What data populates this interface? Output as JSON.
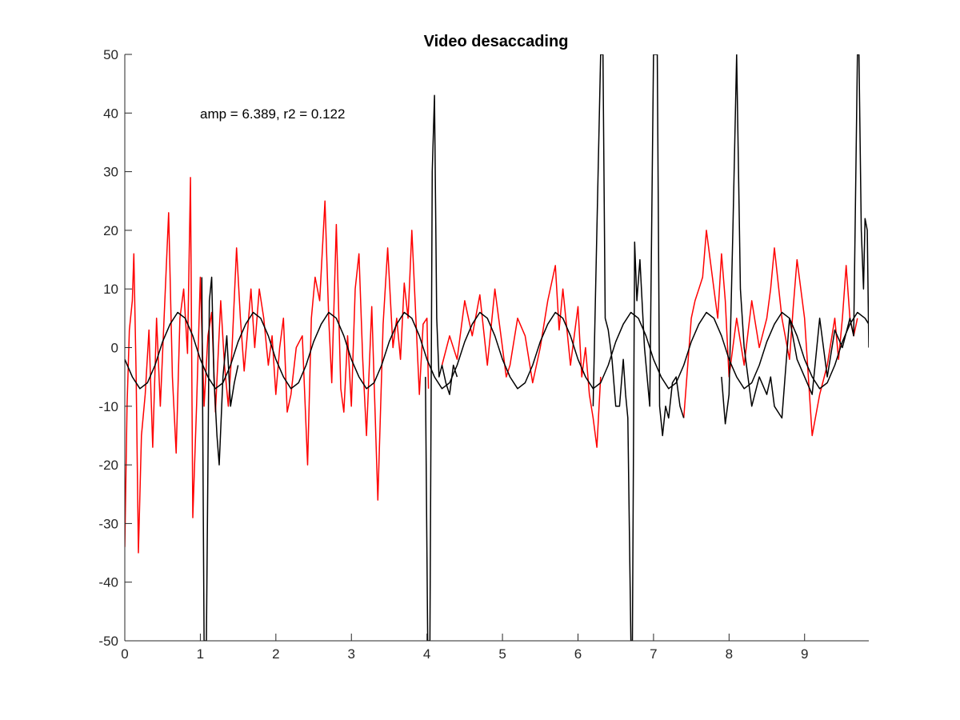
{
  "chart_data": {
    "type": "line",
    "title": "Video desaccading",
    "xlabel": "",
    "ylabel": "",
    "xlim": [
      0,
      9.85
    ],
    "ylim": [
      -50,
      50
    ],
    "x_ticks": [
      0,
      1,
      2,
      3,
      4,
      5,
      6,
      7,
      8,
      9
    ],
    "y_ticks": [
      -50,
      -40,
      -30,
      -20,
      -10,
      0,
      10,
      20,
      30,
      40,
      50
    ],
    "grid": false,
    "legend": "none",
    "annotation": {
      "text": "amp = 6.389, r2 = 0.122",
      "x": 1.0,
      "y": 39
    },
    "series": [
      {
        "color": "#ff0000",
        "x": [
          0,
          0.03,
          0.06,
          0.1,
          0.12,
          0.15,
          0.18,
          0.22,
          0.27,
          0.32,
          0.37,
          0.42,
          0.47,
          0.52,
          0.58,
          0.63,
          0.68,
          0.73,
          0.78,
          0.83,
          0.87,
          0.9,
          0.95,
          1.0,
          1.05,
          1.1,
          1.15,
          1.2,
          1.27,
          1.32,
          1.37,
          1.42,
          1.48,
          1.53,
          1.58,
          1.62,
          1.67,
          1.72,
          1.78,
          1.84,
          1.9,
          1.95,
          2.0,
          2.05,
          2.1,
          2.15,
          2.2,
          2.27,
          2.35,
          2.42,
          2.47,
          2.52,
          2.58,
          2.65,
          2.7,
          2.74,
          2.8,
          2.86,
          2.9,
          2.95,
          3.0,
          3.05,
          3.1,
          3.15,
          3.2,
          3.27,
          3.35,
          3.42,
          3.48,
          3.55,
          3.6,
          3.65,
          3.7,
          3.75,
          3.8,
          3.85,
          3.9,
          3.95,
          4.0,
          4.02
        ],
        "values": [
          -34,
          -10,
          3,
          8,
          16,
          -5,
          -35,
          -15,
          -8,
          3,
          -17,
          5,
          -10,
          5,
          23,
          -5,
          -18,
          5,
          10,
          -1,
          29,
          -29,
          -10,
          12,
          -10,
          2,
          6,
          -11,
          8,
          -3,
          -10,
          0,
          17,
          5,
          -4,
          2,
          10,
          0,
          10,
          5,
          -3,
          2,
          -8,
          0,
          5,
          -11,
          -8,
          0,
          2,
          -20,
          5,
          12,
          8,
          25,
          5,
          -6,
          21,
          -7,
          -11,
          2,
          -10,
          10,
          16,
          -2,
          -15,
          7,
          -26,
          4,
          17,
          0,
          5,
          -2,
          11,
          5,
          20,
          6,
          -8,
          4,
          5,
          -7
        ]
      },
      {
        "color": "#ff0000",
        "x": [
          4.2,
          4.3,
          4.4,
          4.5,
          4.6,
          4.7,
          4.8,
          4.9,
          5.0,
          5.05,
          5.1,
          5.2,
          5.3,
          5.4,
          5.5,
          5.6,
          5.7,
          5.75,
          5.8,
          5.9,
          6.0,
          6.05,
          6.1,
          6.15,
          6.2,
          6.25,
          6.3
        ],
        "values": [
          -3,
          2,
          -2,
          8,
          2,
          9,
          -3,
          10,
          0,
          -5,
          -3,
          5,
          2,
          -6,
          0,
          8,
          14,
          3,
          10,
          -3,
          7,
          -5,
          0,
          -8,
          -12,
          -17,
          -5
        ]
      },
      {
        "color": "#ff0000",
        "x": [
          7.4,
          7.5,
          7.55,
          7.6,
          7.65,
          7.7,
          7.75,
          7.8,
          7.85,
          7.9,
          7.95,
          8.0,
          8.1,
          8.2,
          8.3,
          8.4,
          8.5,
          8.55,
          8.6,
          8.7,
          8.8,
          8.85,
          8.9,
          9.0,
          9.1,
          9.2,
          9.3,
          9.4,
          9.45,
          9.5,
          9.55,
          9.6,
          9.65,
          9.7
        ],
        "values": [
          -12,
          5,
          8,
          10,
          12,
          20,
          15,
          10,
          5,
          16,
          8,
          -5,
          5,
          -3,
          8,
          0,
          5,
          10,
          17,
          5,
          -2,
          7,
          15,
          5,
          -15,
          -8,
          -3,
          5,
          -2,
          5,
          14,
          5,
          2,
          5
        ]
      },
      {
        "color": "#000000",
        "x": [
          1.02,
          1.05,
          1.08,
          1.12,
          1.15,
          1.18,
          1.22,
          1.25,
          1.3,
          1.35,
          1.4,
          1.45,
          1.5
        ],
        "values": [
          12,
          -50,
          -50,
          8,
          12,
          -5,
          -15,
          -20,
          -5,
          2,
          -10,
          -6,
          -3
        ]
      },
      {
        "color": "#000000",
        "x": [
          3.98,
          4.01,
          4.04,
          4.07,
          4.1,
          4.13,
          4.16,
          4.2,
          4.25,
          4.3,
          4.35,
          4.4
        ],
        "values": [
          -5,
          -50,
          -50,
          30,
          43,
          5,
          -5,
          -3,
          -6,
          -8,
          -3,
          -5
        ]
      },
      {
        "color": "#000000",
        "x": [
          6.2,
          6.3,
          6.33,
          6.36,
          6.4,
          6.45,
          6.5,
          6.55,
          6.6,
          6.63,
          6.66,
          6.7,
          6.72,
          6.75,
          6.78,
          6.82,
          6.88,
          6.95,
          7.0,
          7.05,
          7.08,
          7.12,
          7.16,
          7.2,
          7.25,
          7.3,
          7.35,
          7.4
        ],
        "values": [
          -10,
          50,
          50,
          5,
          3,
          -2,
          -10,
          -10,
          -2,
          -8,
          -12,
          -50,
          -50,
          18,
          8,
          15,
          0,
          -10,
          50,
          50,
          -10,
          -15,
          -10,
          -12,
          -6,
          -5,
          -10,
          -12
        ]
      },
      {
        "color": "#000000",
        "x": [
          7.9,
          7.95,
          8.0,
          8.05,
          8.1,
          8.15,
          8.2,
          8.3,
          8.4,
          8.5,
          8.55,
          8.6,
          8.7,
          8.8,
          8.9,
          9.0,
          9.1,
          9.2,
          9.3,
          9.4,
          9.5,
          9.6,
          9.65,
          9.7,
          9.72,
          9.75,
          9.78,
          9.8,
          9.83,
          9.85
        ],
        "values": [
          -5,
          -13,
          -8,
          20,
          50,
          10,
          0,
          -10,
          -5,
          -8,
          -5,
          -10,
          -12,
          5,
          -2,
          -5,
          -8,
          5,
          -5,
          3,
          0,
          5,
          2,
          50,
          50,
          20,
          10,
          22,
          20,
          0
        ]
      },
      {
        "color": "#000000",
        "x": [
          0,
          0.1,
          0.2,
          0.3,
          0.4,
          0.5,
          0.6,
          0.7,
          0.8,
          0.9,
          1.0,
          1.1,
          1.2,
          1.3,
          1.4,
          1.5,
          1.6,
          1.7,
          1.8,
          1.9,
          2.0,
          2.1,
          2.2,
          2.3,
          2.4,
          2.5,
          2.6,
          2.7,
          2.8,
          2.9,
          3.0,
          3.1,
          3.2,
          3.3,
          3.4,
          3.5,
          3.6,
          3.7,
          3.8,
          3.9,
          4.0,
          4.1,
          4.2,
          4.3,
          4.4,
          4.5,
          4.6,
          4.7,
          4.8,
          4.9,
          5.0,
          5.1,
          5.2,
          5.3,
          5.4,
          5.5,
          5.6,
          5.7,
          5.8,
          5.9,
          6.0,
          6.1,
          6.2,
          6.3,
          6.4,
          6.5,
          6.6,
          6.7,
          6.8,
          6.9,
          7.0,
          7.1,
          7.2,
          7.3,
          7.4,
          7.5,
          7.6,
          7.7,
          7.8,
          7.9,
          8.0,
          8.1,
          8.2,
          8.3,
          8.4,
          8.5,
          8.6,
          8.7,
          8.8,
          8.9,
          9.0,
          9.1,
          9.2,
          9.3,
          9.4,
          9.5,
          9.6,
          9.7,
          9.8,
          9.85
        ],
        "values": [
          -2,
          -5,
          -7,
          -6,
          -3,
          1,
          4,
          6,
          5,
          2,
          -2,
          -5,
          -7,
          -6,
          -3,
          1,
          4,
          6,
          5,
          2,
          -2,
          -5,
          -7,
          -6,
          -3,
          1,
          4,
          6,
          5,
          2,
          -2,
          -5,
          -7,
          -6,
          -3,
          1,
          4,
          6,
          5,
          2,
          -2,
          -5,
          -7,
          -6,
          -3,
          1,
          4,
          6,
          5,
          2,
          -2,
          -5,
          -7,
          -6,
          -3,
          1,
          4,
          6,
          5,
          2,
          -2,
          -5,
          -7,
          -6,
          -3,
          1,
          4,
          6,
          5,
          2,
          -2,
          -5,
          -7,
          -6,
          -3,
          1,
          4,
          6,
          5,
          2,
          -2,
          -5,
          -7,
          -6,
          -3,
          1,
          4,
          6,
          5,
          2,
          -2,
          -5,
          -7,
          -6,
          -3,
          1,
          4,
          6,
          5,
          4
        ]
      }
    ]
  }
}
